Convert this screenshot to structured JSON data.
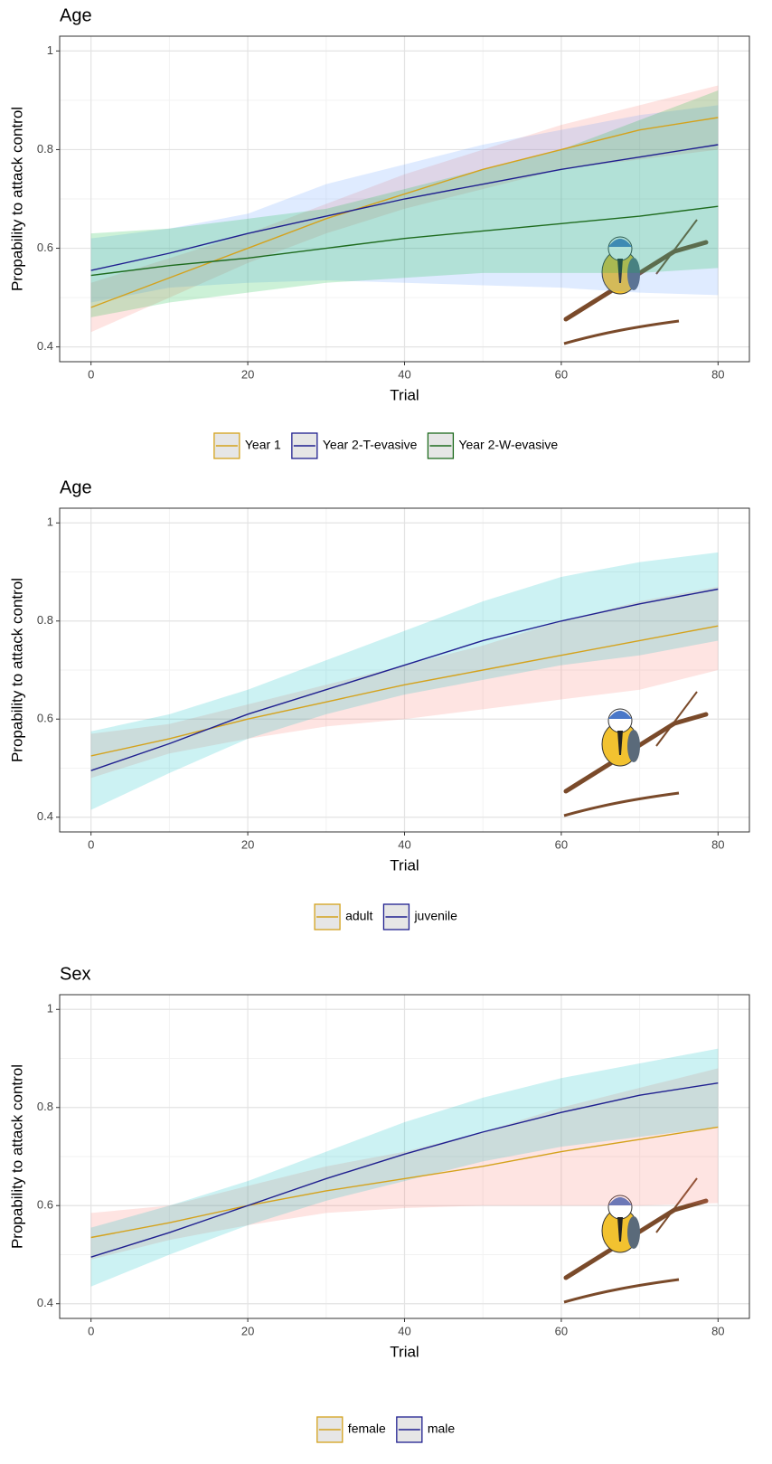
{
  "chart_data": [
    {
      "type": "line",
      "title": "Age",
      "x_label": "Trial",
      "y_label": "Propability to attack control",
      "x": [
        0,
        10,
        20,
        30,
        40,
        50,
        60,
        70,
        80
      ],
      "xlim": [
        -4,
        84
      ],
      "xticks": [
        0,
        20,
        40,
        60,
        80
      ],
      "x_minor_ticks": [
        10,
        30,
        50,
        70
      ],
      "ylim": [
        0.37,
        1.03
      ],
      "yticks": [
        0.4,
        0.6,
        0.8,
        1.0
      ],
      "y_minor_ticks": [
        0.5,
        0.7,
        0.9
      ],
      "grid": true,
      "legend": "bottom",
      "band_opacity": 0.2,
      "series": [
        {
          "name": "Year 1",
          "color": "#d4a21c",
          "fill": "#f8766d",
          "values": [
            0.48,
            0.54,
            0.6,
            0.66,
            0.71,
            0.76,
            0.8,
            0.84,
            0.865
          ],
          "lower": [
            0.43,
            0.5,
            0.57,
            0.63,
            0.68,
            0.72,
            0.76,
            0.78,
            0.8
          ],
          "upper": [
            0.53,
            0.58,
            0.63,
            0.69,
            0.75,
            0.8,
            0.85,
            0.89,
            0.93
          ]
        },
        {
          "name": "Year 2-T-evasive",
          "color": "#1f1f8f",
          "fill": "#619cff",
          "values": [
            0.555,
            0.59,
            0.63,
            0.665,
            0.7,
            0.73,
            0.76,
            0.785,
            0.81
          ],
          "lower": [
            0.49,
            0.52,
            0.53,
            0.535,
            0.53,
            0.525,
            0.52,
            0.51,
            0.505
          ],
          "upper": [
            0.62,
            0.64,
            0.67,
            0.73,
            0.77,
            0.81,
            0.84,
            0.87,
            0.89
          ]
        },
        {
          "name": "Year 2-W-evasive",
          "color": "#1e6b1e",
          "fill": "#00ba38",
          "values": [
            0.545,
            0.565,
            0.58,
            0.6,
            0.62,
            0.635,
            0.65,
            0.665,
            0.685
          ],
          "lower": [
            0.46,
            0.49,
            0.51,
            0.53,
            0.54,
            0.55,
            0.55,
            0.55,
            0.56
          ],
          "upper": [
            0.63,
            0.64,
            0.66,
            0.68,
            0.72,
            0.76,
            0.8,
            0.86,
            0.92
          ]
        }
      ]
    },
    {
      "type": "line",
      "title": "Age",
      "x_label": "Trial",
      "y_label": "Propability to attack control",
      "x": [
        0,
        10,
        20,
        30,
        40,
        50,
        60,
        70,
        80
      ],
      "xlim": [
        -4,
        84
      ],
      "xticks": [
        0,
        20,
        40,
        60,
        80
      ],
      "x_minor_ticks": [
        10,
        30,
        50,
        70
      ],
      "ylim": [
        0.37,
        1.03
      ],
      "yticks": [
        0.4,
        0.6,
        0.8,
        1.0
      ],
      "y_minor_ticks": [
        0.5,
        0.7,
        0.9
      ],
      "grid": true,
      "legend": "bottom",
      "band_opacity": 0.2,
      "series": [
        {
          "name": "adult",
          "color": "#d4a21c",
          "fill": "#f8766d",
          "values": [
            0.525,
            0.56,
            0.6,
            0.635,
            0.67,
            0.7,
            0.73,
            0.76,
            0.79
          ],
          "lower": [
            0.48,
            0.53,
            0.56,
            0.585,
            0.6,
            0.62,
            0.64,
            0.66,
            0.7
          ],
          "upper": [
            0.57,
            0.59,
            0.63,
            0.67,
            0.71,
            0.75,
            0.8,
            0.84,
            0.87
          ]
        },
        {
          "name": "juvenile",
          "color": "#1f1f8f",
          "fill": "#00bfc4",
          "values": [
            0.495,
            0.55,
            0.61,
            0.66,
            0.71,
            0.76,
            0.8,
            0.835,
            0.865
          ],
          "lower": [
            0.415,
            0.49,
            0.56,
            0.61,
            0.65,
            0.68,
            0.71,
            0.73,
            0.76
          ],
          "upper": [
            0.575,
            0.61,
            0.66,
            0.72,
            0.78,
            0.84,
            0.89,
            0.92,
            0.94
          ]
        }
      ]
    },
    {
      "type": "line",
      "title": "Sex",
      "x_label": "Trial",
      "y_label": "Propability to attack control",
      "x": [
        0,
        10,
        20,
        30,
        40,
        50,
        60,
        70,
        80
      ],
      "xlim": [
        -4,
        84
      ],
      "xticks": [
        0,
        20,
        40,
        60,
        80
      ],
      "x_minor_ticks": [
        10,
        30,
        50,
        70
      ],
      "ylim": [
        0.37,
        1.03
      ],
      "yticks": [
        0.4,
        0.6,
        0.8,
        1.0
      ],
      "y_minor_ticks": [
        0.5,
        0.7,
        0.9
      ],
      "grid": true,
      "legend": "bottom",
      "band_opacity": 0.2,
      "series": [
        {
          "name": "female",
          "color": "#d4a21c",
          "fill": "#f8766d",
          "values": [
            0.535,
            0.565,
            0.6,
            0.63,
            0.655,
            0.68,
            0.71,
            0.735,
            0.76
          ],
          "lower": [
            0.49,
            0.53,
            0.56,
            0.585,
            0.595,
            0.6,
            0.6,
            0.6,
            0.605
          ],
          "upper": [
            0.585,
            0.6,
            0.64,
            0.68,
            0.71,
            0.75,
            0.8,
            0.84,
            0.88
          ]
        },
        {
          "name": "male",
          "color": "#1f1f8f",
          "fill": "#00bfc4",
          "values": [
            0.495,
            0.545,
            0.6,
            0.655,
            0.705,
            0.75,
            0.79,
            0.825,
            0.85
          ],
          "lower": [
            0.435,
            0.5,
            0.56,
            0.61,
            0.65,
            0.69,
            0.72,
            0.74,
            0.76
          ],
          "upper": [
            0.555,
            0.6,
            0.65,
            0.71,
            0.77,
            0.82,
            0.86,
            0.89,
            0.92
          ]
        }
      ]
    }
  ]
}
